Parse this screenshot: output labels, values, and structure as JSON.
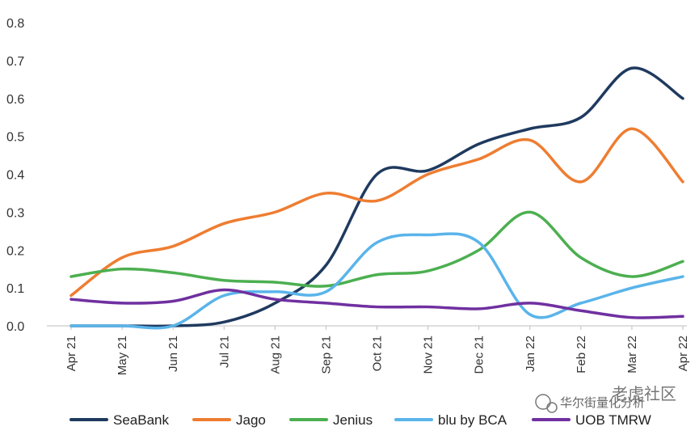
{
  "chart_data": {
    "type": "line",
    "title": "",
    "xlabel": "",
    "ylabel": "",
    "categories": [
      "Apr 21",
      "May 21",
      "Jun 21",
      "Jul 21",
      "Aug 21",
      "Sep 21",
      "Oct 21",
      "Nov 21",
      "Dec 21",
      "Jan 22",
      "Feb 22",
      "Mar 22",
      "Apr 22"
    ],
    "ylim": [
      0,
      0.8
    ],
    "yticks": [
      "0.0",
      "0.1",
      "0.2",
      "0.3",
      "0.4",
      "0.5",
      "0.6",
      "0.7",
      "0.8"
    ],
    "grid": false,
    "legend_position": "bottom",
    "series": [
      {
        "name": "SeaBank",
        "color": "#1f3a5f",
        "values": [
          0.0,
          0.0,
          0.0,
          0.01,
          0.06,
          0.16,
          0.4,
          0.41,
          0.48,
          0.52,
          0.55,
          0.68,
          0.6
        ]
      },
      {
        "name": "Jago",
        "color": "#ee7d31",
        "values": [
          0.08,
          0.18,
          0.21,
          0.27,
          0.3,
          0.35,
          0.33,
          0.4,
          0.44,
          0.49,
          0.38,
          0.52,
          0.38
        ]
      },
      {
        "name": "Jenius",
        "color": "#4caf50",
        "values": [
          0.13,
          0.15,
          0.14,
          0.12,
          0.115,
          0.105,
          0.135,
          0.145,
          0.2,
          0.3,
          0.18,
          0.13,
          0.17
        ]
      },
      {
        "name": "blu by BCA",
        "color": "#5ab4ea",
        "values": [
          0.0,
          0.0,
          0.0,
          0.08,
          0.09,
          0.09,
          0.22,
          0.24,
          0.22,
          0.03,
          0.06,
          0.1,
          0.13
        ]
      },
      {
        "name": "UOB TMRW",
        "color": "#7030a0",
        "values": [
          0.07,
          0.06,
          0.065,
          0.095,
          0.07,
          0.06,
          0.05,
          0.05,
          0.045,
          0.06,
          0.04,
          0.022,
          0.025
        ]
      }
    ]
  },
  "watermark": {
    "text1": "华尔街量化分析",
    "text2": "老虎社区"
  }
}
